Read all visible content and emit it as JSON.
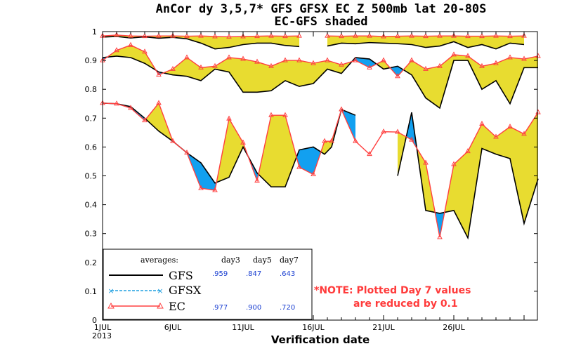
{
  "title_line1": "AnCor dy 3,5,7* GFS GFSX EC   Z 500mb lat 20-80S",
  "title_line2": "EC-GFS shaded",
  "note_line1": "*NOTE: Plotted Day 7 values",
  "note_line2": "are reduced by 0.1",
  "legend": {
    "header": "averages:",
    "day_labels": [
      "day3",
      "day5",
      "day7"
    ],
    "rows": [
      {
        "name": "GFS",
        "values": [
          ".959",
          ".847",
          ".643"
        ]
      },
      {
        "name": "GFSX",
        "values": [
          "",
          "",
          ""
        ]
      },
      {
        "name": "EC",
        "values": [
          ".977",
          ".900",
          ".720"
        ]
      }
    ]
  },
  "colors": {
    "ec_better": "#e8dc30",
    "gfs_better": "#12a0f0",
    "gfs_line": "#000000",
    "ec_line": "#ff4040",
    "gfsx_line": "#20a0e0"
  },
  "chart_data": {
    "type": "line",
    "title": "AnCor dy 3,5,7* GFS GFSX EC   Z 500mb lat 20-80S",
    "subtitle": "EC-GFS shaded",
    "xlabel": "Verification date",
    "x_tick_labels": [
      "1JUL",
      "6JUL",
      "11JUL",
      "16JUL",
      "21JUL",
      "26JUL"
    ],
    "x_tick_year": "2013",
    "x_range": [
      1,
      31
    ],
    "ylim": [
      0,
      1
    ],
    "y_ticks": [
      "0",
      "0.1",
      "0.2",
      "0.3",
      "0.4",
      "0.5",
      "0.6",
      "0.7",
      "0.8",
      "0.9",
      "1"
    ],
    "grid": false,
    "legend_position": "bottom-left",
    "series": [
      {
        "name": "GFS",
        "group": "day3",
        "values": [
          [
            1,
            0.981
          ],
          [
            2,
            0.983
          ],
          [
            3,
            0.978
          ],
          [
            4,
            0.982
          ],
          [
            5,
            0.977
          ],
          [
            6,
            0.98
          ],
          [
            7,
            0.975
          ],
          [
            8,
            0.96
          ],
          [
            9,
            0.94
          ],
          [
            10,
            0.945
          ],
          [
            11,
            0.955
          ],
          [
            12,
            0.96
          ],
          [
            13,
            0.96
          ],
          [
            14,
            0.952
          ],
          [
            15,
            0.948
          ],
          [
            16.5,
            null
          ],
          [
            17,
            0.95
          ],
          [
            18,
            0.96
          ],
          [
            19,
            0.958
          ],
          [
            20,
            0.962
          ],
          [
            21,
            0.96
          ],
          [
            22,
            0.958
          ],
          [
            23,
            0.955
          ],
          [
            24,
            0.945
          ],
          [
            25,
            0.95
          ],
          [
            26,
            0.965
          ],
          [
            27,
            0.945
          ],
          [
            28,
            0.955
          ],
          [
            29,
            0.94
          ],
          [
            30,
            0.96
          ],
          [
            31,
            0.955
          ]
        ]
      },
      {
        "name": "EC",
        "group": "day3",
        "values": [
          [
            1,
            0.985
          ],
          [
            2,
            0.988
          ],
          [
            3,
            0.985
          ],
          [
            4,
            0.984
          ],
          [
            5,
            0.985
          ],
          [
            6,
            0.985
          ],
          [
            7,
            0.984
          ],
          [
            8,
            0.985
          ],
          [
            9,
            0.983
          ],
          [
            10,
            0.982
          ],
          [
            11,
            0.983
          ],
          [
            12,
            0.984
          ],
          [
            13,
            0.985
          ],
          [
            14,
            0.984
          ],
          [
            15,
            0.985
          ],
          [
            16.5,
            null
          ],
          [
            17,
            0.985
          ],
          [
            18,
            0.984
          ],
          [
            19,
            0.985
          ],
          [
            20,
            0.985
          ],
          [
            21,
            0.983
          ],
          [
            22,
            0.984
          ],
          [
            23,
            0.985
          ],
          [
            24,
            0.984
          ],
          [
            25,
            0.985
          ],
          [
            26,
            0.985
          ],
          [
            27,
            0.984
          ],
          [
            28,
            0.984
          ],
          [
            29,
            0.985
          ],
          [
            30,
            0.984
          ],
          [
            31,
            0.985
          ]
        ]
      },
      {
        "name": "GFS",
        "group": "day5",
        "values": [
          [
            1,
            0.91
          ],
          [
            2,
            0.915
          ],
          [
            3,
            0.91
          ],
          [
            4,
            0.89
          ],
          [
            5,
            0.86
          ],
          [
            6,
            0.85
          ],
          [
            7,
            0.845
          ],
          [
            8,
            0.83
          ],
          [
            9,
            0.87
          ],
          [
            10,
            0.86
          ],
          [
            11,
            0.79
          ],
          [
            12,
            0.79
          ],
          [
            13,
            0.795
          ],
          [
            14,
            0.83
          ],
          [
            15,
            0.81
          ],
          [
            16,
            0.82
          ],
          [
            17,
            0.87
          ],
          [
            18,
            0.855
          ],
          [
            19,
            0.91
          ],
          [
            20,
            0.905
          ],
          [
            21,
            0.87
          ],
          [
            22,
            0.88
          ],
          [
            23,
            0.85
          ],
          [
            24,
            0.77
          ],
          [
            25,
            0.735
          ],
          [
            26,
            0.9
          ],
          [
            27,
            0.9
          ],
          [
            28,
            0.8
          ],
          [
            29,
            0.83
          ],
          [
            30,
            0.75
          ],
          [
            31,
            0.875
          ],
          [
            32,
            0.875
          ]
        ]
      },
      {
        "name": "EC",
        "group": "day5",
        "values": [
          [
            1,
            0.9
          ],
          [
            2,
            0.935
          ],
          [
            3,
            0.953
          ],
          [
            4,
            0.93
          ],
          [
            5,
            0.85
          ],
          [
            6,
            0.87
          ],
          [
            7,
            0.91
          ],
          [
            8,
            0.875
          ],
          [
            9,
            0.88
          ],
          [
            10,
            0.91
          ],
          [
            11,
            0.905
          ],
          [
            12,
            0.895
          ],
          [
            13,
            0.88
          ],
          [
            14,
            0.9
          ],
          [
            15,
            0.9
          ],
          [
            16,
            0.89
          ],
          [
            17,
            0.9
          ],
          [
            18,
            0.885
          ],
          [
            19,
            0.9
          ],
          [
            20,
            0.875
          ],
          [
            21,
            0.9
          ],
          [
            22,
            0.845
          ],
          [
            23,
            0.9
          ],
          [
            24,
            0.87
          ],
          [
            25,
            0.88
          ],
          [
            26,
            0.92
          ],
          [
            27,
            0.915
          ],
          [
            28,
            0.88
          ],
          [
            29,
            0.89
          ],
          [
            30,
            0.91
          ],
          [
            31,
            0.905
          ],
          [
            32,
            0.915
          ]
        ]
      },
      {
        "name": "GFS",
        "group": "day7",
        "values": [
          [
            1,
            0.752
          ],
          [
            2,
            0.75
          ],
          [
            3,
            0.74
          ],
          [
            4,
            0.7
          ],
          [
            5,
            0.655
          ],
          [
            6,
            0.62
          ],
          [
            7,
            0.58
          ],
          [
            8,
            0.545
          ],
          [
            9,
            0.475
          ],
          [
            10,
            0.495
          ],
          [
            11,
            0.6
          ],
          [
            12,
            0.51
          ],
          [
            13,
            0.462
          ],
          [
            14,
            0.462
          ],
          [
            15,
            0.59
          ],
          [
            16,
            0.6
          ],
          [
            16.8,
            0.575
          ],
          [
            17.3,
            0.6
          ],
          [
            18,
            0.73
          ],
          [
            19,
            0.71
          ],
          [
            null,
            null
          ],
          [
            22,
            0.5
          ],
          [
            23,
            0.72
          ],
          [
            24,
            0.38
          ],
          [
            25,
            0.37
          ],
          [
            26,
            0.38
          ],
          [
            27,
            0.285
          ],
          [
            28,
            0.595
          ],
          [
            29,
            0.575
          ],
          [
            30,
            0.56
          ],
          [
            31,
            0.335
          ],
          [
            32,
            0.49
          ]
        ]
      },
      {
        "name": "EC",
        "group": "day7",
        "values": [
          [
            1,
            0.752
          ],
          [
            2,
            0.75
          ],
          [
            3,
            0.735
          ],
          [
            4,
            0.692
          ],
          [
            5,
            0.752
          ],
          [
            6,
            0.62
          ],
          [
            7,
            0.58
          ],
          [
            8,
            0.457
          ],
          [
            9,
            0.45
          ],
          [
            10,
            0.698
          ],
          [
            11,
            0.615
          ],
          [
            12,
            0.483
          ],
          [
            13,
            0.71
          ],
          [
            14,
            0.71
          ],
          [
            15,
            0.53
          ],
          [
            16,
            0.505
          ],
          [
            16.8,
            0.62
          ],
          [
            17.3,
            0.62
          ],
          [
            18,
            0.73
          ],
          [
            19,
            0.62
          ],
          [
            20,
            0.575
          ],
          [
            21,
            0.653
          ],
          [
            22,
            0.652
          ],
          [
            23,
            0.625
          ],
          [
            24,
            0.545
          ],
          [
            25,
            0.287
          ],
          [
            26,
            0.54
          ],
          [
            27,
            0.585
          ],
          [
            28,
            0.68
          ],
          [
            29,
            0.635
          ],
          [
            30,
            0.67
          ],
          [
            31,
            0.645
          ],
          [
            32,
            0.72
          ]
        ]
      }
    ]
  }
}
